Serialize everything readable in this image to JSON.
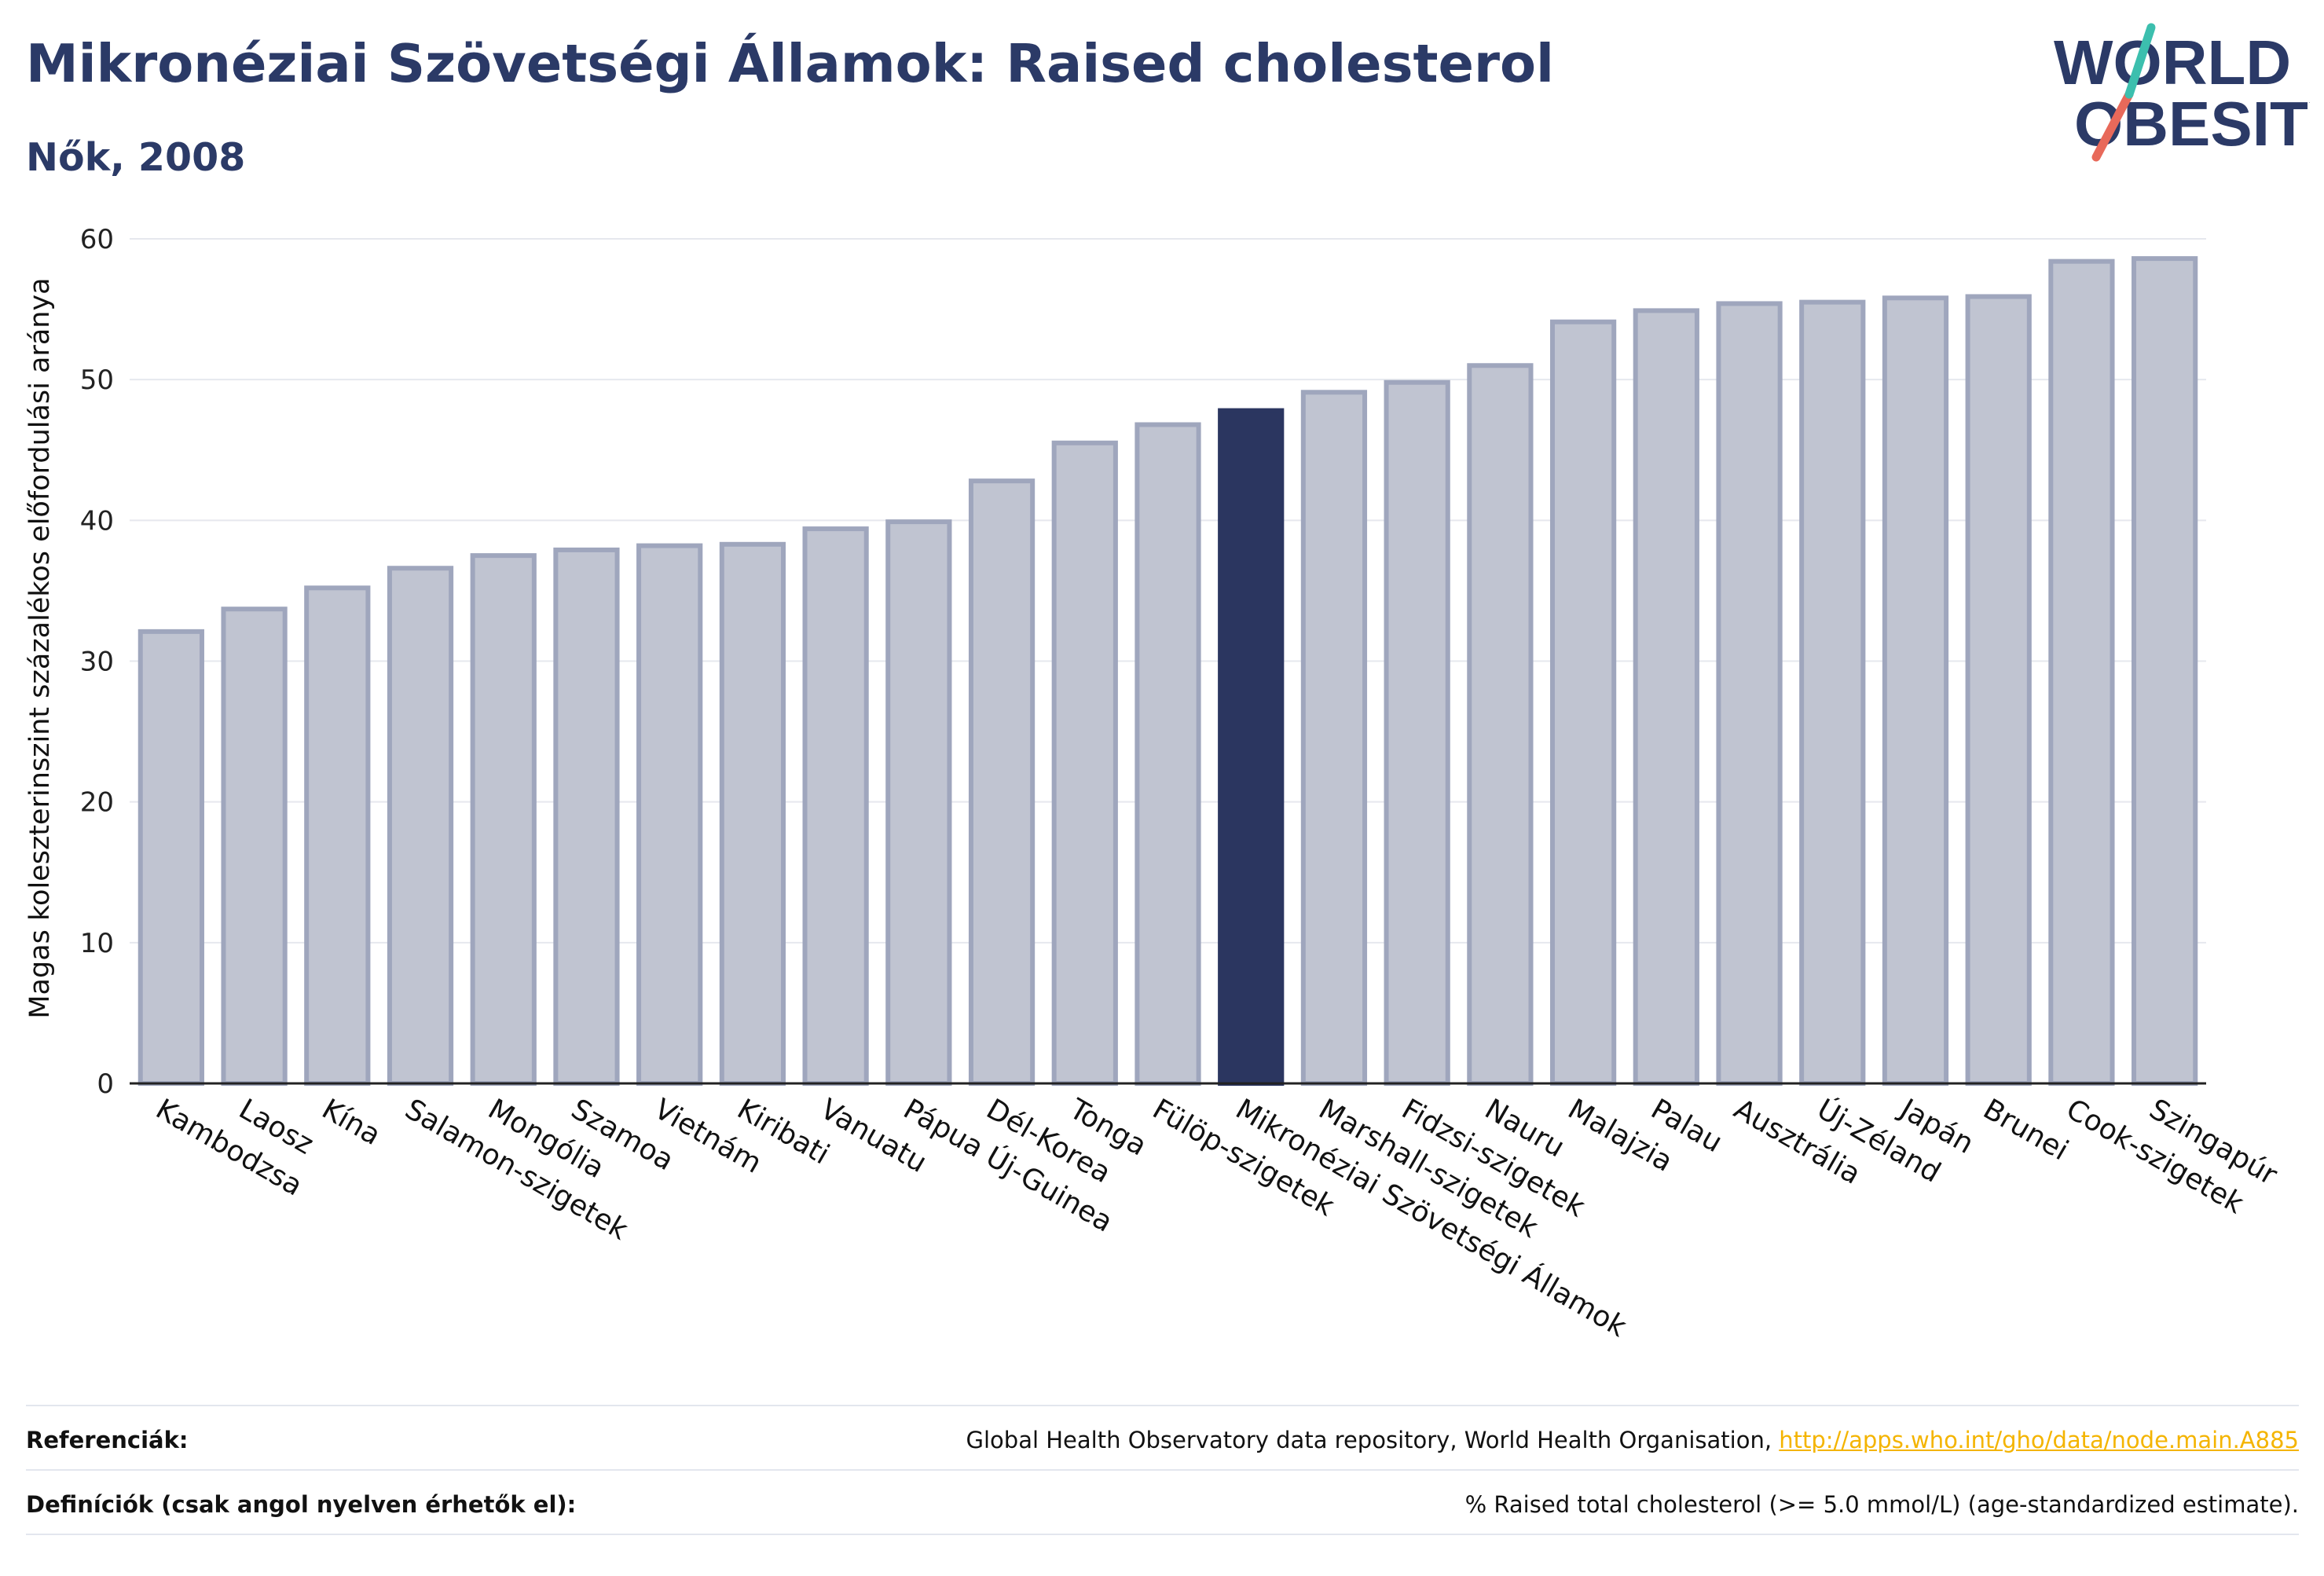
{
  "header": {
    "title": "Mikronéziai Szövetségi Államok: Raised cholesterol",
    "subtitle": "Nők, 2008"
  },
  "logo": {
    "line1": "WORLD",
    "line2": "OBESITY"
  },
  "colors": {
    "bar_fill": "#c0c4d1",
    "bar_stroke": "#9fa6bd",
    "highlight": "#2b3660",
    "title": "#2b3a67",
    "grid": "#e6e8ee",
    "logo_teal": "#3cbfae",
    "logo_coral": "#e8695a"
  },
  "chart_data": {
    "type": "bar",
    "ylabel": "Magas koleszterinszint százalékos előfordulási aránya",
    "ylim": [
      0,
      60
    ],
    "yticks": [
      0,
      10,
      20,
      30,
      40,
      50,
      60
    ],
    "grid": true,
    "highlight": "Mikronéziai Szövetségi Államok",
    "categories": [
      "Kambodzsa",
      "Laosz",
      "Kína",
      "Salamon-szigetek",
      "Mongólia",
      "Szamoa",
      "Vietnám",
      "Kiribati",
      "Vanuatu",
      "Pápua Új-Guinea",
      "Dél-Korea",
      "Tonga",
      "Fülöp-szigetek",
      "Mikronéziai Szövetségi Államok",
      "Marshall-szigetek",
      "Fidzsi-szigetek",
      "Nauru",
      "Malajzia",
      "Palau",
      "Ausztrália",
      "Új-Zéland",
      "Japán",
      "Brunei",
      "Cook-szigetek",
      "Szingapúr"
    ],
    "values": [
      32.1,
      33.7,
      35.2,
      36.6,
      37.5,
      37.9,
      38.2,
      38.3,
      39.4,
      39.9,
      42.8,
      45.5,
      46.8,
      47.8,
      49.1,
      49.8,
      51.0,
      54.1,
      54.9,
      55.4,
      55.5,
      55.8,
      55.9,
      58.4,
      58.6
    ]
  },
  "footer": {
    "references_label": "Referenciák:",
    "references_text": "Global Health Observatory data repository, World Health Organisation, ",
    "references_link": "http://apps.who.int/gho/data/node.main.A885",
    "definitions_label": "Definíciók (csak angol nyelven érhetők el):",
    "definitions_text": "% Raised total cholesterol (>= 5.0 mmol/L) (age-standardized estimate)."
  }
}
